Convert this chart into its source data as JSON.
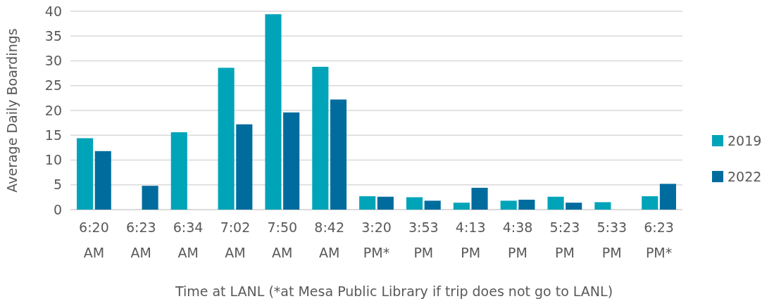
{
  "chart_data": {
    "type": "bar",
    "xlabel": "Time at LANL (*at Mesa Public Library if trip does not go to LANL)",
    "ylabel": "Average Daily Boardings",
    "categories": [
      "6:20 AM",
      "6:23 AM",
      "6:34 AM",
      "7:02 AM",
      "7:50 AM",
      "8:42 AM",
      "3:20 PM*",
      "3:53 PM",
      "4:13 PM",
      "4:38 PM",
      "5:23 PM",
      "5:33 PM",
      "6:23 PM*"
    ],
    "series": [
      {
        "name": "2019",
        "color": "#00a4b9",
        "values": [
          14.4,
          null,
          15.6,
          28.6,
          39.4,
          28.8,
          2.7,
          2.5,
          1.4,
          1.8,
          2.6,
          1.5,
          2.7
        ]
      },
      {
        "name": "2022",
        "color": "#006c9e",
        "values": [
          11.8,
          4.8,
          null,
          17.2,
          19.6,
          22.2,
          2.6,
          1.8,
          4.4,
          2.0,
          1.4,
          null,
          5.2
        ]
      }
    ],
    "ylim": [
      0,
      40
    ],
    "yticks": [
      0,
      5,
      10,
      15,
      20,
      25,
      30,
      35,
      40
    ],
    "grid": "y",
    "legend": "right"
  }
}
